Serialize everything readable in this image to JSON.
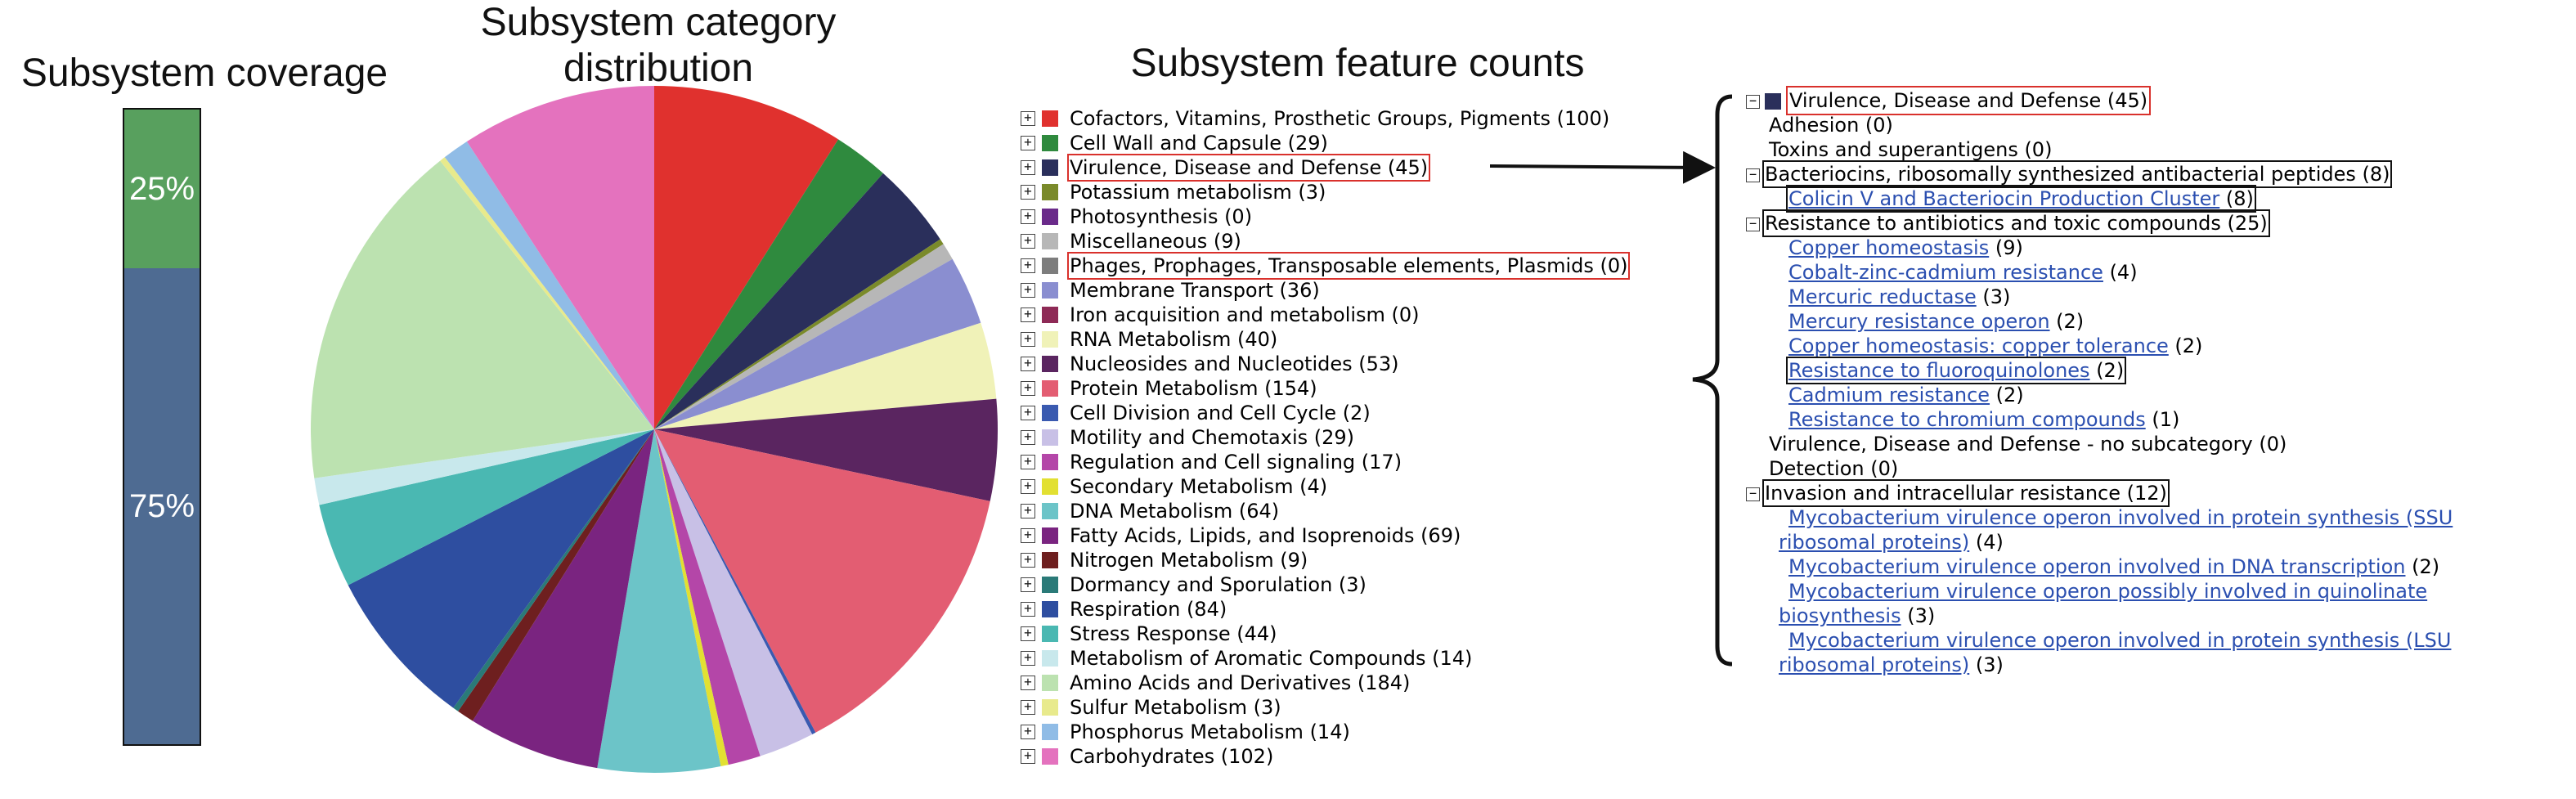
{
  "titles": {
    "coverage": "Subsystem coverage",
    "pie": "Subsystem category distribution",
    "features": "Subsystem feature counts"
  },
  "coverage": {
    "top_label": "25%",
    "bottom_label": "75%",
    "top_fraction": 0.25,
    "top_color": "#58a05e",
    "bottom_color": "#4e6b92"
  },
  "chart_data": {
    "type": "pie",
    "title": "Subsystem category distribution",
    "slices": [
      {
        "label": "Cofactors, Vitamins, Prosthetic Groups, Pigments",
        "value": 100,
        "color": "#e0312e"
      },
      {
        "label": "Cell Wall and Capsule",
        "value": 29,
        "color": "#2f8a3e"
      },
      {
        "label": "Virulence, Disease and Defense",
        "value": 45,
        "color": "#2a2f5b"
      },
      {
        "label": "Potassium metabolism",
        "value": 3,
        "color": "#7a8a2a"
      },
      {
        "label": "Photosynthesis",
        "value": 0,
        "color": "#6a2a8a"
      },
      {
        "label": "Miscellaneous",
        "value": 9,
        "color": "#b7b7b7"
      },
      {
        "label": "Phages, Prophages, Transposable elements, Plasmids",
        "value": 0,
        "color": "#7d7d7d"
      },
      {
        "label": "Membrane Transport",
        "value": 36,
        "color": "#8a8ed0"
      },
      {
        "label": "Iron acquisition and metabolism",
        "value": 0,
        "color": "#8e2a56"
      },
      {
        "label": "RNA Metabolism",
        "value": 40,
        "color": "#f0f2b8"
      },
      {
        "label": "Nucleosides and Nucleotides",
        "value": 53,
        "color": "#5a2560"
      },
      {
        "label": "Protein Metabolism",
        "value": 154,
        "color": "#e35d72"
      },
      {
        "label": "Cell Division and Cell Cycle",
        "value": 2,
        "color": "#3a5ab0"
      },
      {
        "label": "Motility and Chemotaxis",
        "value": 29,
        "color": "#c8c0e6"
      },
      {
        "label": "Regulation and Cell signaling",
        "value": 17,
        "color": "#b446a8"
      },
      {
        "label": "Secondary Metabolism",
        "value": 4,
        "color": "#e2e032"
      },
      {
        "label": "DNA Metabolism",
        "value": 64,
        "color": "#6cc4c8"
      },
      {
        "label": "Fatty Acids, Lipids, and Isoprenoids",
        "value": 69,
        "color": "#7a2480"
      },
      {
        "label": "Nitrogen Metabolism",
        "value": 9,
        "color": "#6e1f1f"
      },
      {
        "label": "Dormancy and Sporulation",
        "value": 3,
        "color": "#2a7a78"
      },
      {
        "label": "Respiration",
        "value": 84,
        "color": "#2e4ea0"
      },
      {
        "label": "Stress Response",
        "value": 44,
        "color": "#4ab8b2"
      },
      {
        "label": "Metabolism of Aromatic Compounds",
        "value": 14,
        "color": "#c8e8ec"
      },
      {
        "label": "Amino Acids and Derivatives",
        "value": 184,
        "color": "#bce2b0"
      },
      {
        "label": "Sulfur Metabolism",
        "value": 3,
        "color": "#e8ea8c"
      },
      {
        "label": "Phosphorus Metabolism",
        "value": 14,
        "color": "#90bce6"
      },
      {
        "label": "Carbohydrates",
        "value": 102,
        "color": "#e472be"
      }
    ]
  },
  "legend": {
    "highlighted": [
      "Virulence, Disease and Defense",
      "Phages, Prophages, Transposable elements, Plasmids"
    ]
  },
  "tree": {
    "root": "Virulence, Disease and Defense (45)",
    "rows": [
      {
        "text": "Adhesion (0)",
        "kind": "plain",
        "indent": "ind1"
      },
      {
        "text": "Toxins and superantigens (0)",
        "kind": "plain",
        "indent": "ind1"
      },
      {
        "text": "Bacteriocins, ribosomally synthesized antibacterial peptides (8)",
        "kind": "group",
        "indent": "ind1",
        "box": true
      },
      {
        "link": "Colicin V and Bacteriocin Production Cluster",
        "count": " (8)",
        "kind": "link",
        "indent": "ind3",
        "box": true
      },
      {
        "text": "Resistance to antibiotics and toxic compounds (25)",
        "kind": "group",
        "indent": "ind1",
        "box": true
      },
      {
        "link": "Copper homeostasis",
        "count": " (9)",
        "kind": "link",
        "indent": "ind3"
      },
      {
        "link": "Cobalt-zinc-cadmium resistance",
        "count": " (4)",
        "kind": "link",
        "indent": "ind3"
      },
      {
        "link": "Mercuric reductase",
        "count": " (3)",
        "kind": "link",
        "indent": "ind3"
      },
      {
        "link": "Mercury resistance operon",
        "count": " (2)",
        "kind": "link",
        "indent": "ind3"
      },
      {
        "link": "Copper homeostasis: copper tolerance",
        "count": " (2)",
        "kind": "link",
        "indent": "ind3"
      },
      {
        "link": "Resistance to fluoroquinolones",
        "count": " (2)",
        "kind": "link",
        "indent": "ind3",
        "box": true
      },
      {
        "link": "Cadmium resistance",
        "count": " (2)",
        "kind": "link",
        "indent": "ind3"
      },
      {
        "link": "Resistance to chromium compounds",
        "count": " (1)",
        "kind": "link",
        "indent": "ind3"
      },
      {
        "text": "Virulence, Disease and Defense - no subcategory (0)",
        "kind": "plain",
        "indent": "ind1"
      },
      {
        "text": "Detection (0)",
        "kind": "plain",
        "indent": "ind1"
      },
      {
        "text": "Invasion and intracellular resistance (12)",
        "kind": "group",
        "indent": "ind1",
        "box": true
      },
      {
        "link": "Mycobacterium virulence operon involved in protein synthesis (SSU",
        "count": "",
        "kind": "link",
        "indent": "ind3"
      },
      {
        "link": "ribosomal proteins)",
        "count": " (4)",
        "kind": "link",
        "indent": "ind2"
      },
      {
        "link": "Mycobacterium virulence operon involved in DNA transcription",
        "count": " (2)",
        "kind": "link",
        "indent": "ind3"
      },
      {
        "link": "Mycobacterium virulence operon possibly involved in quinolinate",
        "count": "",
        "kind": "link",
        "indent": "ind3"
      },
      {
        "link": "biosynthesis",
        "count": " (3)",
        "kind": "link",
        "indent": "ind2"
      },
      {
        "link": "Mycobacterium virulence operon involved in protein synthesis (LSU",
        "count": "",
        "kind": "link",
        "indent": "ind3"
      },
      {
        "link": "ribosomal proteins)",
        "count": " (3)",
        "kind": "link",
        "indent": "ind2"
      }
    ]
  }
}
